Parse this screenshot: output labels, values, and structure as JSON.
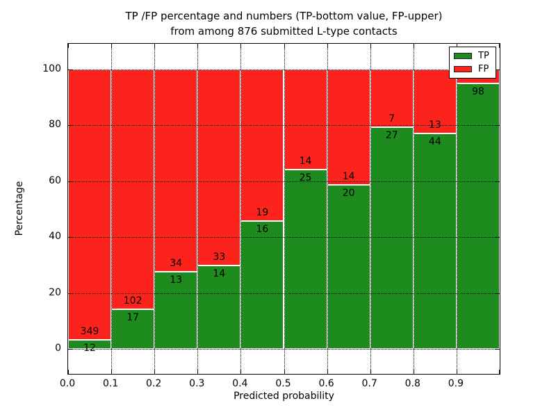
{
  "chart_data": {
    "type": "bar",
    "stacked": true,
    "orientation": "vertical",
    "title_line1": "TP /FP percentage and numbers (TP-bottom value, FP-upper)",
    "title_line2": "from among 876 submitted L-type contacts",
    "xlabel": "Predicted probability",
    "ylabel": "Percentage",
    "x_tick_labels": [
      "0.0",
      "0.1",
      "0.2",
      "0.3",
      "0.4",
      "0.5",
      "0.6",
      "0.7",
      "0.8",
      "0.9"
    ],
    "y_ticks": [
      0,
      20,
      40,
      60,
      80,
      100
    ],
    "xlim": [
      0.0,
      1.0
    ],
    "ylim": [
      -9.5,
      109.5
    ],
    "grid": true,
    "grid_style": "dotted",
    "legend": {
      "position": "upper right",
      "entries": [
        {
          "name": "TP",
          "color": "#1e8b1e"
        },
        {
          "name": "FP",
          "color": "#fb231b"
        }
      ]
    },
    "bins": [
      {
        "x_start": 0.0,
        "x_end": 0.1,
        "tp": 12,
        "fp": 349,
        "tp_pct": 3.3
      },
      {
        "x_start": 0.1,
        "x_end": 0.2,
        "tp": 17,
        "fp": 102,
        "tp_pct": 14.3
      },
      {
        "x_start": 0.2,
        "x_end": 0.3,
        "tp": 13,
        "fp": 34,
        "tp_pct": 27.7
      },
      {
        "x_start": 0.3,
        "x_end": 0.4,
        "tp": 14,
        "fp": 33,
        "tp_pct": 29.8
      },
      {
        "x_start": 0.4,
        "x_end": 0.5,
        "tp": 16,
        "fp": 19,
        "tp_pct": 45.7
      },
      {
        "x_start": 0.5,
        "x_end": 0.6,
        "tp": 25,
        "fp": 14,
        "tp_pct": 64.1
      },
      {
        "x_start": 0.6,
        "x_end": 0.7,
        "tp": 20,
        "fp": 14,
        "tp_pct": 58.8
      },
      {
        "x_start": 0.7,
        "x_end": 0.8,
        "tp": 27,
        "fp": 7,
        "tp_pct": 79.4
      },
      {
        "x_start": 0.8,
        "x_end": 0.9,
        "tp": 44,
        "fp": 13,
        "tp_pct": 77.2
      },
      {
        "x_start": 0.9,
        "x_end": 1.0,
        "tp": 98,
        "fp": null,
        "tp_pct": 95.1
      }
    ]
  }
}
